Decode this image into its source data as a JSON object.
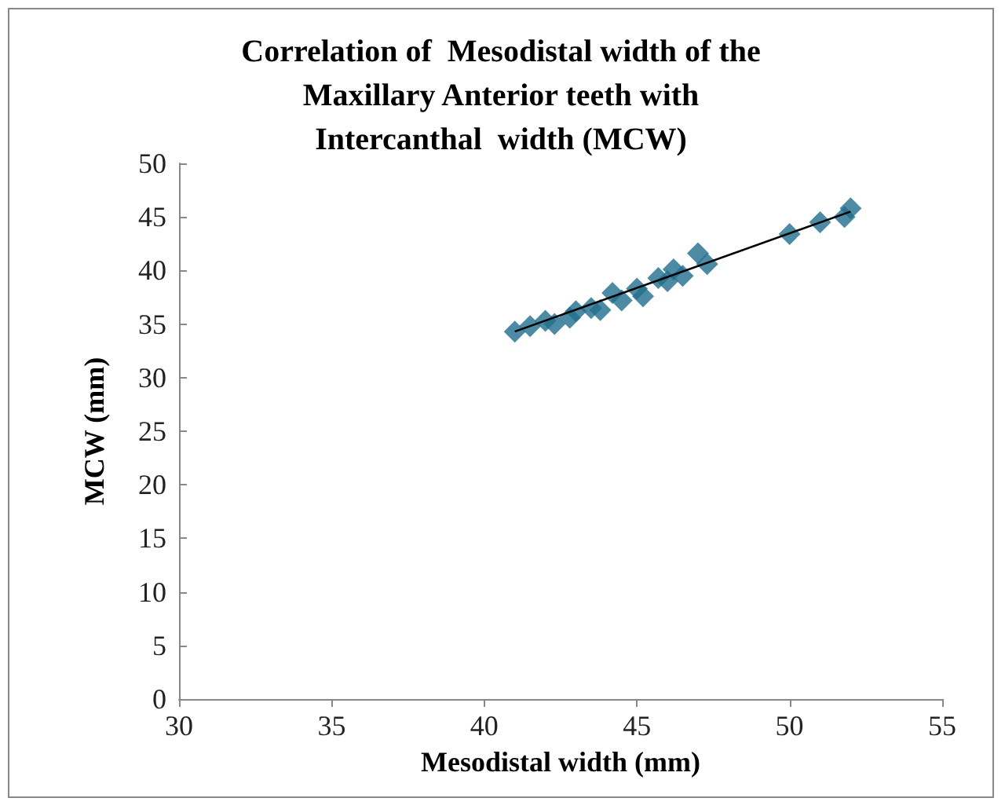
{
  "chart_data": {
    "type": "scatter",
    "title": "Correlation of  Mesodistal width of the\nMaxillary Anterior teeth with\nIntercanthal  width (MCW)",
    "xlabel": "Mesodistal width (mm)",
    "ylabel": "MCW (mm)",
    "xlim": [
      30,
      55
    ],
    "xticks": [
      30,
      35,
      40,
      45,
      50,
      55
    ],
    "ylim": [
      0,
      50
    ],
    "yticks": [
      0,
      5,
      10,
      15,
      20,
      25,
      30,
      35,
      40,
      45,
      50
    ],
    "grid": false,
    "marker": "diamond",
    "series": [
      {
        "color": "#1f6e8c",
        "x": [
          41.0,
          41.5,
          42.0,
          42.3,
          42.8,
          43.0,
          43.5,
          43.8,
          44.2,
          44.5,
          45.0,
          45.2,
          45.7,
          46.0,
          46.2,
          46.5,
          47.0,
          47.3,
          50.0,
          51.0,
          51.8,
          52.0
        ],
        "values": [
          34.3,
          34.8,
          35.3,
          35.0,
          35.6,
          36.2,
          36.5,
          36.3,
          37.9,
          37.2,
          38.3,
          37.6,
          39.3,
          39.0,
          40.1,
          39.5,
          41.6,
          40.6,
          43.4,
          44.5,
          45.0,
          45.8
        ]
      },
      {
        "type": "line",
        "color": "#000000",
        "marker": "none",
        "line_style": "solid",
        "x": [
          41.0,
          52.0
        ],
        "values": [
          34.3,
          45.5
        ]
      }
    ]
  }
}
